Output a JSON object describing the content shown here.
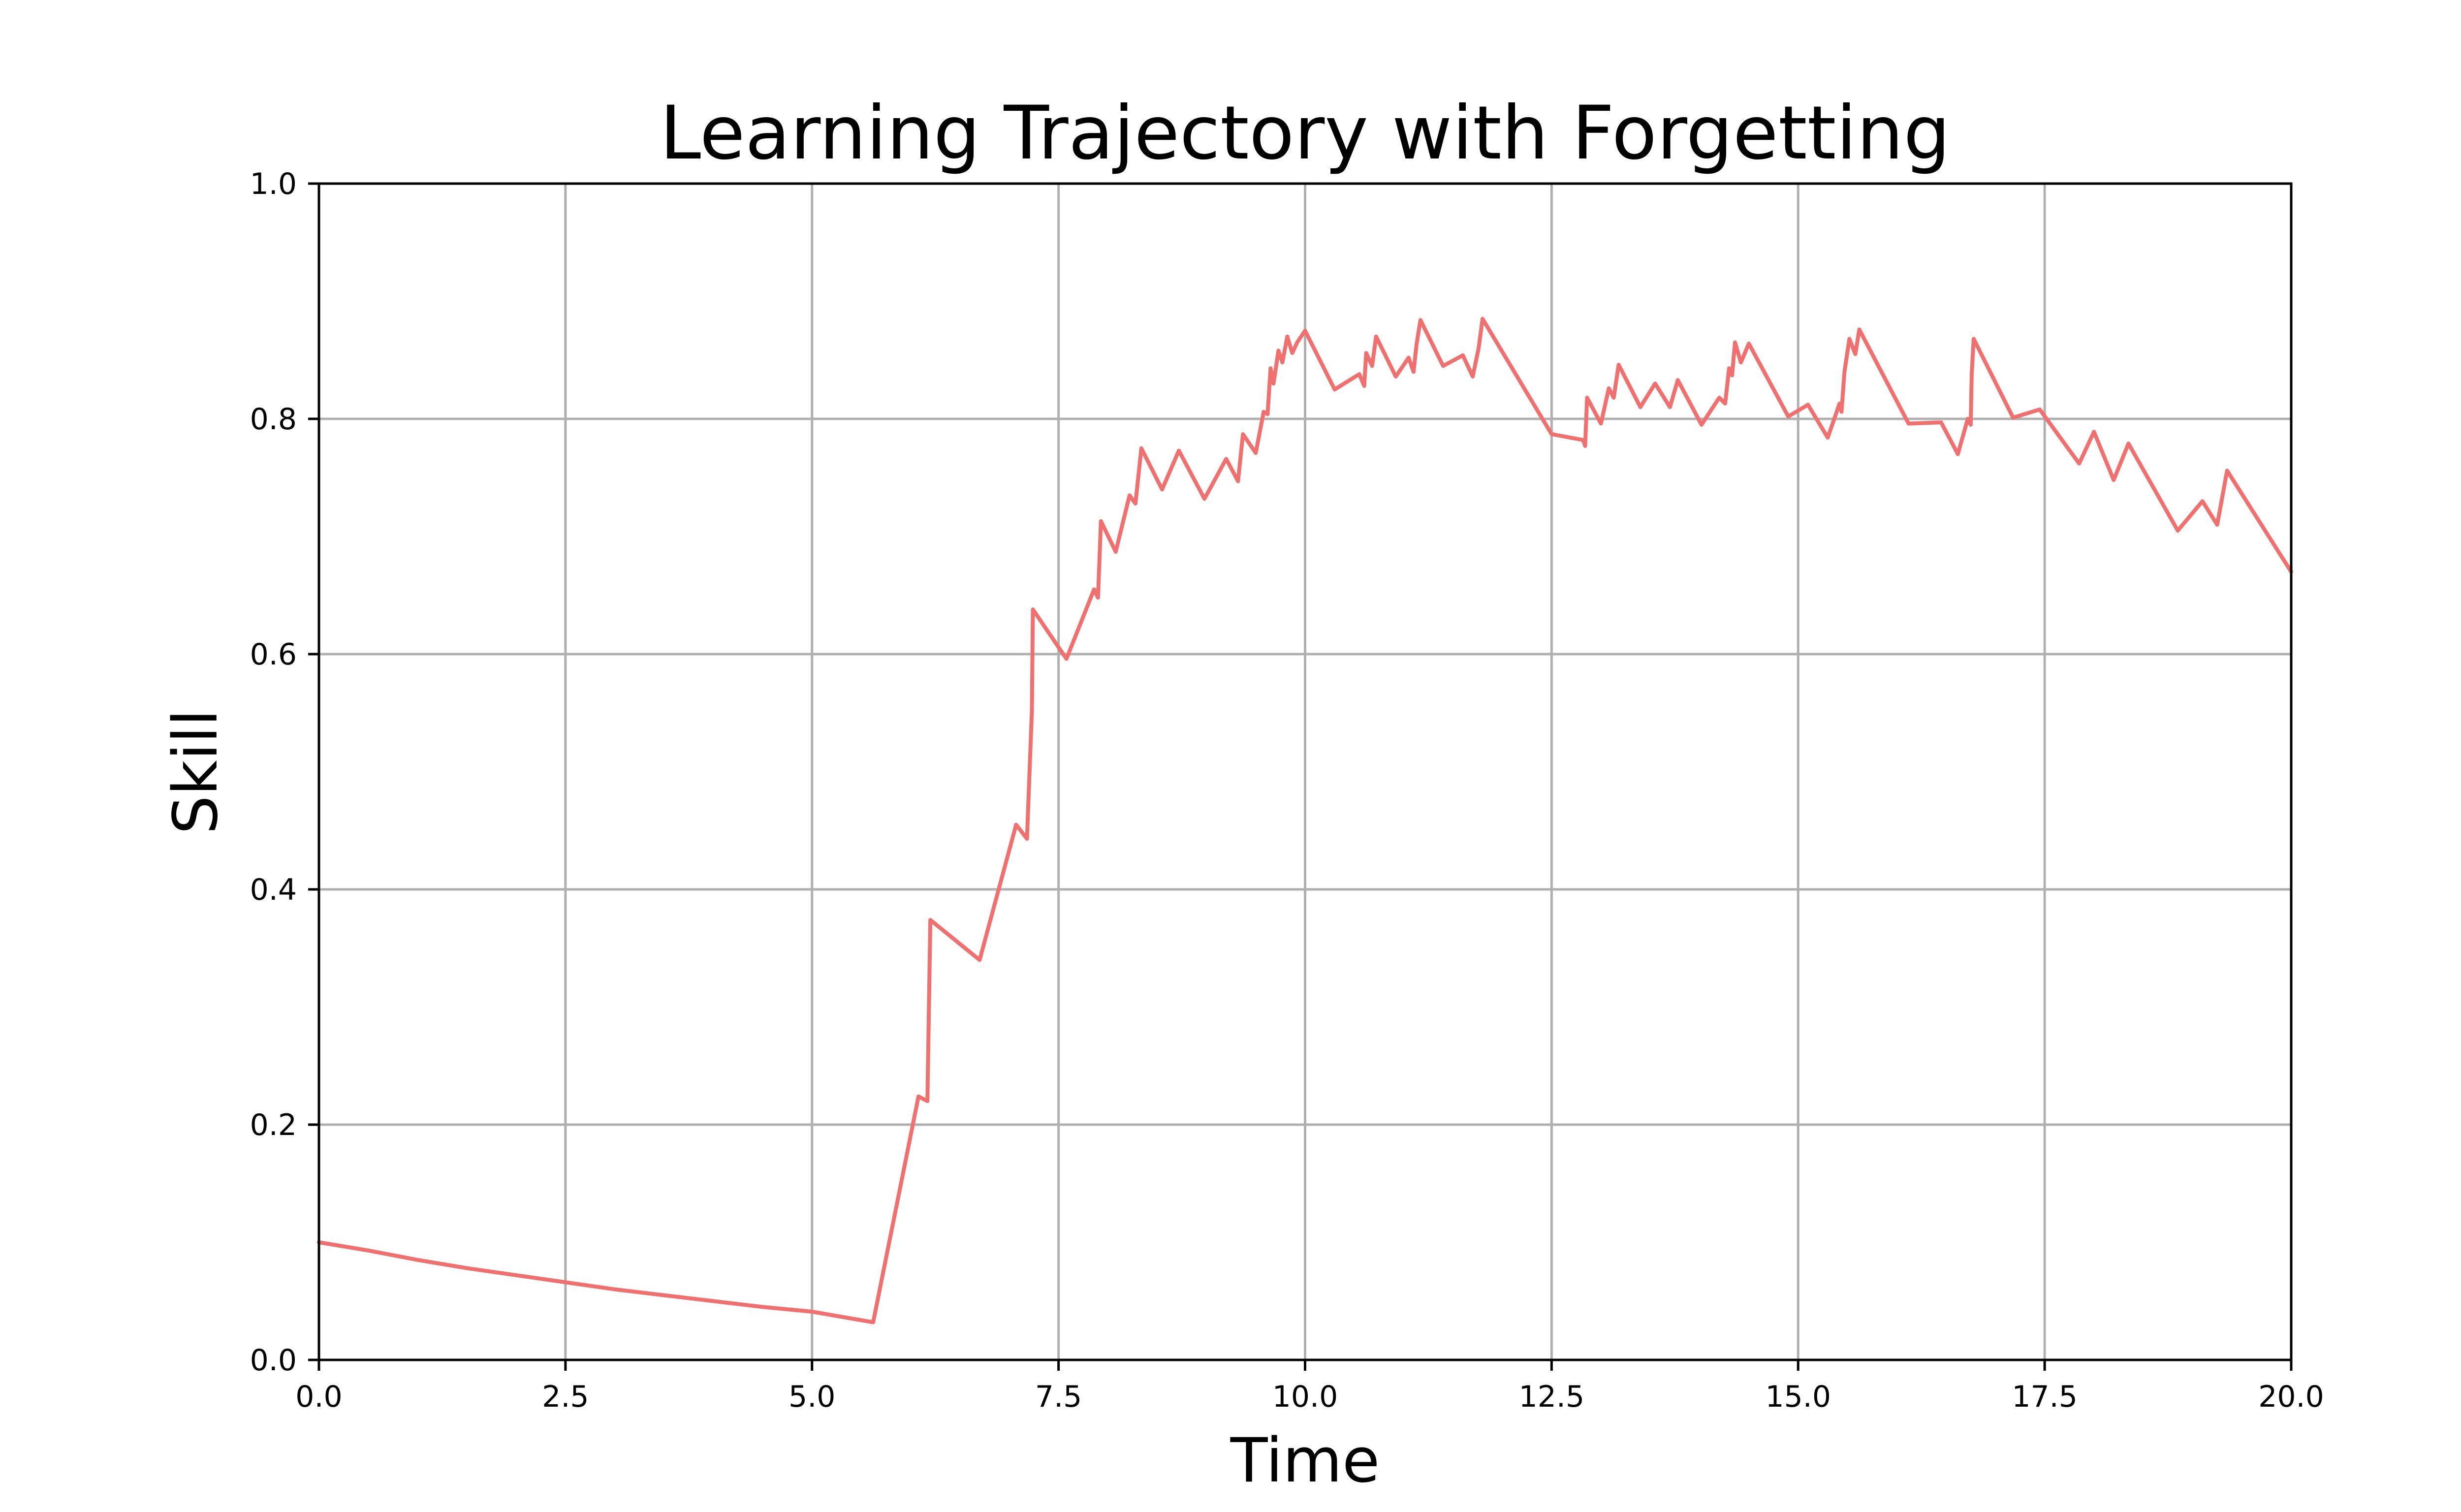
{
  "chart_data": {
    "type": "line",
    "title": "Learning Trajectory with Forgetting",
    "xlabel": "Time",
    "ylabel": "Skill",
    "xlim": [
      0,
      20
    ],
    "ylim": [
      0,
      1
    ],
    "x_ticks": [
      "0.0",
      "2.5",
      "5.0",
      "7.5",
      "10.0",
      "12.5",
      "15.0",
      "17.5",
      "20.0"
    ],
    "y_ticks": [
      "0.0",
      "0.2",
      "0.4",
      "0.6",
      "0.8",
      "1.0"
    ],
    "grid": true,
    "series": [
      {
        "color": "#f07070",
        "x": [
          0,
          0.5,
          1,
          1.5,
          2,
          2.5,
          3,
          3.5,
          4,
          4.5,
          5,
          5.62,
          6.08,
          6.17,
          6.2,
          6.7,
          7.07,
          7.18,
          7.23,
          7.24,
          7.58,
          7.86,
          7.9,
          7.93,
          8.08,
          8.22,
          8.28,
          8.34,
          8.55,
          8.72,
          8.98,
          9.2,
          9.32,
          9.37,
          9.5,
          9.58,
          9.62,
          9.65,
          9.68,
          9.73,
          9.77,
          9.82,
          9.87,
          9.92,
          10.0,
          10.3,
          10.55,
          10.6,
          10.62,
          10.68,
          10.72,
          10.92,
          11.05,
          11.1,
          11.13,
          11.17,
          11.4,
          11.6,
          11.7,
          11.76,
          11.8,
          12.5,
          12.82,
          12.84,
          12.86,
          13.0,
          13.08,
          13.13,
          13.18,
          13.4,
          13.55,
          13.7,
          13.78,
          14.02,
          14.2,
          14.26,
          14.3,
          14.33,
          14.36,
          14.42,
          14.5,
          14.9,
          15.1,
          15.3,
          15.42,
          15.44,
          15.47,
          15.52,
          15.58,
          15.62,
          16.12,
          16.45,
          16.62,
          16.72,
          16.75,
          16.76,
          16.78,
          17.18,
          17.45,
          17.85,
          18.0,
          18.2,
          18.35,
          18.85,
          19.1,
          19.25,
          19.35,
          20.0
        ],
        "y": [
          0.1,
          0.093,
          0.085,
          0.078,
          0.072,
          0.066,
          0.06,
          0.055,
          0.05,
          0.045,
          0.041,
          0.032,
          0.224,
          0.22,
          0.374,
          0.34,
          0.455,
          0.443,
          0.552,
          0.638,
          0.596,
          0.655,
          0.648,
          0.713,
          0.687,
          0.735,
          0.728,
          0.775,
          0.74,
          0.773,
          0.732,
          0.766,
          0.747,
          0.787,
          0.771,
          0.806,
          0.804,
          0.843,
          0.83,
          0.858,
          0.848,
          0.87,
          0.856,
          0.865,
          0.875,
          0.825,
          0.838,
          0.828,
          0.856,
          0.845,
          0.87,
          0.836,
          0.852,
          0.84,
          0.863,
          0.884,
          0.845,
          0.854,
          0.836,
          0.86,
          0.885,
          0.787,
          0.782,
          0.777,
          0.818,
          0.796,
          0.826,
          0.818,
          0.846,
          0.81,
          0.83,
          0.81,
          0.833,
          0.795,
          0.818,
          0.813,
          0.843,
          0.837,
          0.865,
          0.848,
          0.864,
          0.802,
          0.812,
          0.784,
          0.813,
          0.806,
          0.84,
          0.868,
          0.855,
          0.876,
          0.796,
          0.797,
          0.77,
          0.8,
          0.795,
          0.838,
          0.868,
          0.801,
          0.808,
          0.762,
          0.789,
          0.748,
          0.779,
          0.705,
          0.73,
          0.71,
          0.756,
          0.67
        ]
      }
    ]
  }
}
